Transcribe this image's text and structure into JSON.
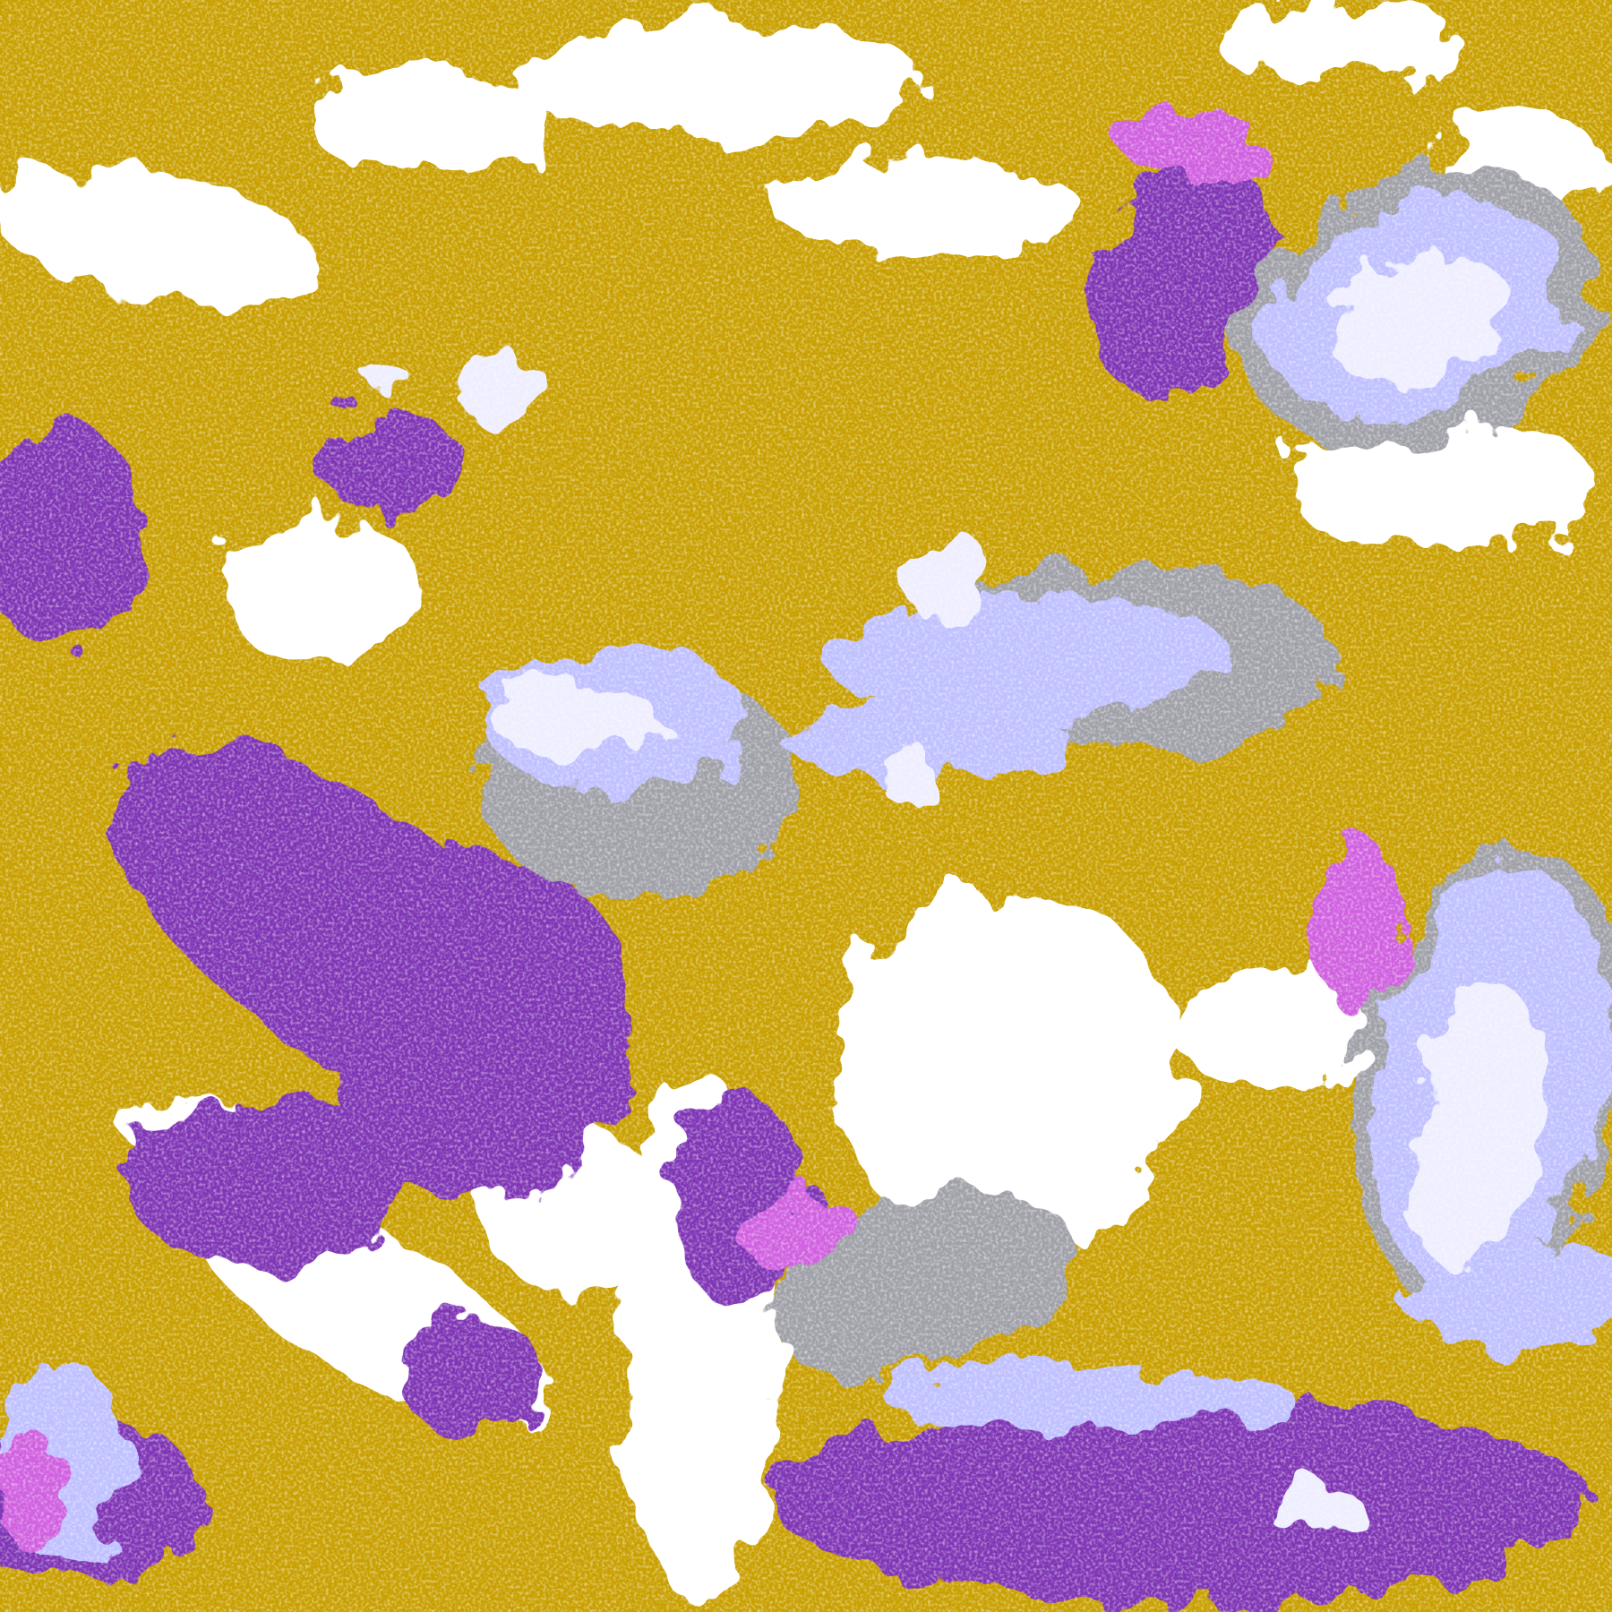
{
  "colors": {
    "background": "#ffffff",
    "gold": "#c9a000",
    "purple": "#7f35b5",
    "magenta": "#d060e0",
    "lavender": "#bfc0ff",
    "pale": "#eeeeff",
    "gray": "#a0a0a8"
  }
}
